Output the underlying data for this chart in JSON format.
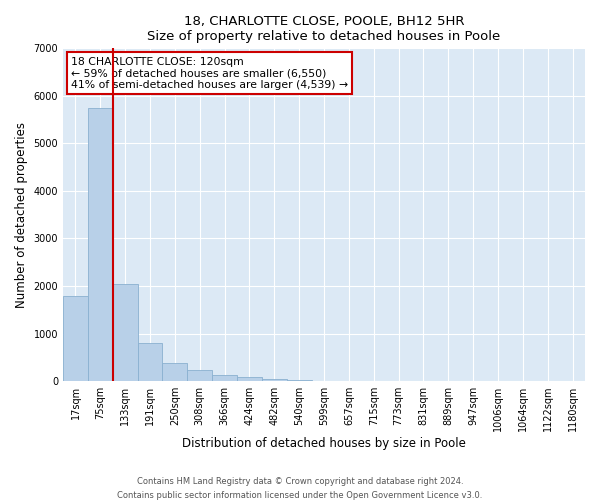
{
  "title1": "18, CHARLOTTE CLOSE, POOLE, BH12 5HR",
  "title2": "Size of property relative to detached houses in Poole",
  "xlabel": "Distribution of detached houses by size in Poole",
  "ylabel": "Number of detached properties",
  "bar_labels": [
    "17sqm",
    "75sqm",
    "133sqm",
    "191sqm",
    "250sqm",
    "308sqm",
    "366sqm",
    "424sqm",
    "482sqm",
    "540sqm",
    "599sqm",
    "657sqm",
    "715sqm",
    "773sqm",
    "831sqm",
    "889sqm",
    "947sqm",
    "1006sqm",
    "1064sqm",
    "1122sqm",
    "1180sqm"
  ],
  "bar_values": [
    1780,
    5750,
    2050,
    800,
    370,
    230,
    120,
    80,
    40,
    20,
    10,
    0,
    0,
    0,
    0,
    0,
    0,
    0,
    0,
    0,
    0
  ],
  "bar_color": "#b8d0e8",
  "bar_edge_color": "#8ab0d0",
  "property_line_color": "#cc0000",
  "annotation_title": "18 CHARLOTTE CLOSE: 120sqm",
  "annotation_line1": "← 59% of detached houses are smaller (6,550)",
  "annotation_line2": "41% of semi-detached houses are larger (4,539) →",
  "annotation_box_edgecolor": "#cc0000",
  "ylim": [
    0,
    7000
  ],
  "yticks": [
    0,
    1000,
    2000,
    3000,
    4000,
    5000,
    6000,
    7000
  ],
  "footer1": "Contains HM Land Registry data © Crown copyright and database right 2024.",
  "footer2": "Contains public sector information licensed under the Open Government Licence v3.0.",
  "plot_bg_color": "#dce9f5"
}
